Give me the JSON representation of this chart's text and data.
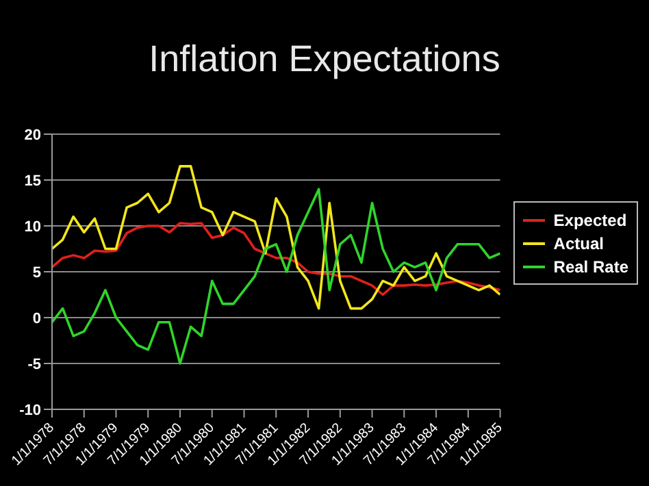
{
  "chart_data": {
    "type": "line",
    "title": "Inflation Expectations",
    "categories": [
      "1/1/1978",
      null,
      null,
      "7/1/1978",
      null,
      null,
      "1/1/1979",
      null,
      null,
      "7/1/1979",
      null,
      null,
      "1/1/1980",
      null,
      null,
      "7/1/1980",
      null,
      null,
      "1/1/1981",
      null,
      null,
      "7/1/1981",
      null,
      null,
      "1/1/1982",
      null,
      null,
      "7/1/1982",
      null,
      null,
      "1/1/1983",
      null,
      null,
      "7/1/1983",
      null,
      null,
      "1/1/1984",
      null,
      null,
      "7/1/1984",
      null,
      null,
      "1/1/1985"
    ],
    "series": [
      {
        "name": "Expected",
        "color": "#e0201c",
        "values": [
          5.5,
          6.5,
          6.8,
          6.5,
          7.3,
          7.2,
          7.3,
          9.2,
          9.8,
          10,
          10,
          9.3,
          10.3,
          10.2,
          10.3,
          8.7,
          9,
          9.8,
          9.2,
          7.5,
          7,
          6.5,
          6.5,
          6,
          5,
          4.8,
          4.8,
          4.5,
          4.5,
          4,
          3.5,
          2.5,
          3.5,
          3.5,
          3.6,
          3.5,
          3.6,
          3.8,
          4,
          3.8,
          3.5,
          3.3,
          3
        ]
      },
      {
        "name": "Actual",
        "color": "#f2e61c",
        "values": [
          7.5,
          8.5,
          11,
          9.3,
          10.8,
          7.5,
          7.5,
          12,
          12.5,
          13.5,
          11.5,
          12.5,
          16.5,
          16.5,
          12,
          11.5,
          9,
          11.5,
          11,
          10.5,
          7,
          13,
          11,
          5.5,
          4,
          1,
          12.5,
          4,
          1,
          1,
          2,
          4,
          3.5,
          5.5,
          4,
          4.5,
          7,
          4.5,
          4,
          3.5,
          3,
          3.5,
          2.5
        ]
      },
      {
        "name": "Real Rate",
        "color": "#2fd42a",
        "values": [
          -0.5,
          1,
          -2,
          -1.5,
          0.5,
          3,
          0,
          -1.5,
          -3,
          -3.5,
          -0.5,
          -0.5,
          -5,
          -1,
          -2,
          4,
          1.5,
          1.5,
          3,
          4.5,
          7.5,
          8,
          5,
          9,
          11.5,
          14,
          3,
          8,
          9,
          6,
          12.5,
          7.5,
          5,
          6,
          5.5,
          6,
          3,
          6.5,
          8,
          8,
          8,
          6.5,
          7
        ]
      }
    ],
    "ylim": [
      -10,
      20
    ],
    "yticks": [
      -10,
      -5,
      0,
      5,
      10,
      15,
      20
    ],
    "grid": "y",
    "legend": "right",
    "marker": "none",
    "line_style": "solid"
  }
}
